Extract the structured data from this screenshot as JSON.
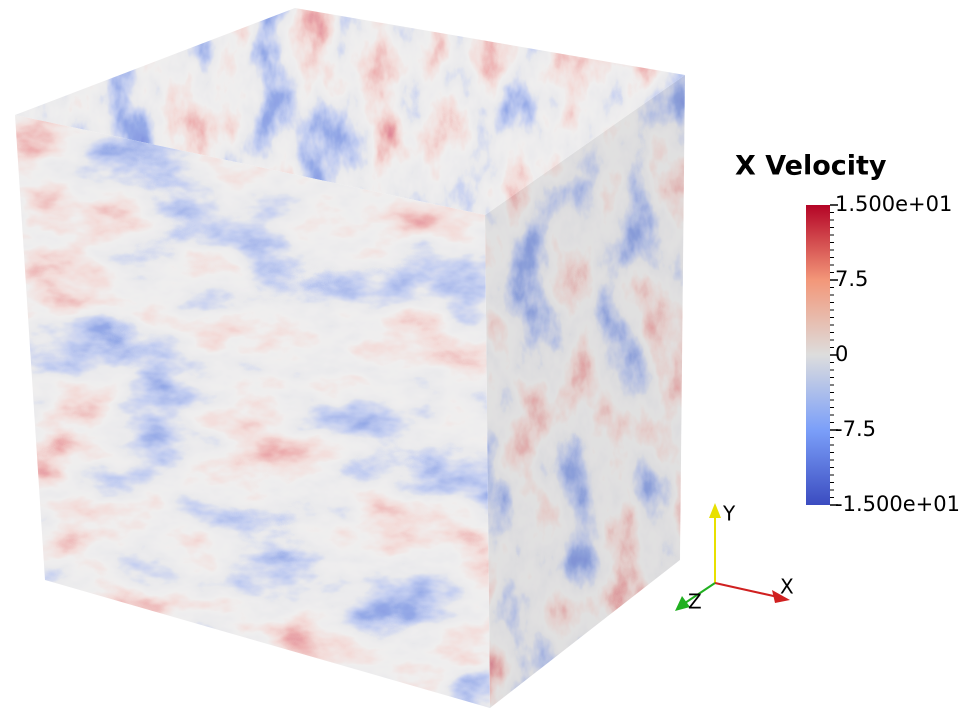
{
  "colorbar": {
    "title": "X Velocity",
    "range": [
      -15,
      15
    ],
    "ticks": [
      {
        "value": 15,
        "label": "1.500e+01"
      },
      {
        "value": 7.5,
        "label": "7.5"
      },
      {
        "value": 0,
        "label": "0"
      },
      {
        "value": -7.5,
        "label": "-7.5"
      },
      {
        "value": -15,
        "label": "-1.500e+01"
      }
    ]
  },
  "axes": {
    "x": "X",
    "y": "Y",
    "z": "Z"
  }
}
